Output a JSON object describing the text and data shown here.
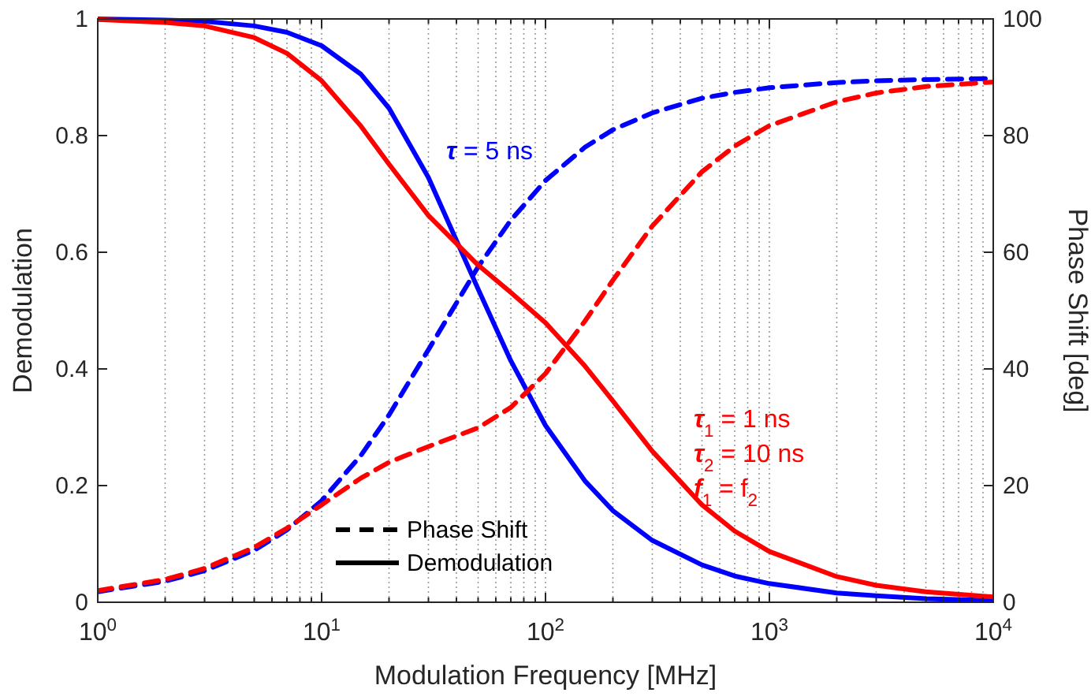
{
  "chart_data": {
    "type": "line",
    "xlabel": "Modulation Frequency [MHz]",
    "ylabel": "Demodulation",
    "y2label": "Phase Shift [deg]",
    "log": "x",
    "grid": "x",
    "marker": "none",
    "xlim": [
      1,
      10000
    ],
    "xticks": [
      {
        "value": 1,
        "label": "10$^{0}$"
      },
      {
        "value": 2,
        "label": null
      },
      {
        "value": 3,
        "label": null
      },
      {
        "value": 4,
        "label": null
      },
      {
        "value": 5,
        "label": null
      },
      {
        "value": 6,
        "label": null
      },
      {
        "value": 7,
        "label": null
      },
      {
        "value": 8,
        "label": null
      },
      {
        "value": 9,
        "label": null
      },
      {
        "value": 10,
        "label": "10$^{1}$"
      },
      {
        "value": 20,
        "label": null
      },
      {
        "value": 30,
        "label": null
      },
      {
        "value": 40,
        "label": null
      },
      {
        "value": 50,
        "label": null
      },
      {
        "value": 60,
        "label": null
      },
      {
        "value": 70,
        "label": null
      },
      {
        "value": 80,
        "label": null
      },
      {
        "value": 90,
        "label": null
      },
      {
        "value": 100,
        "label": "10$^{2}$"
      },
      {
        "value": 200,
        "label": null
      },
      {
        "value": 300,
        "label": null
      },
      {
        "value": 400,
        "label": null
      },
      {
        "value": 500,
        "label": null
      },
      {
        "value": 600,
        "label": null
      },
      {
        "value": 700,
        "label": null
      },
      {
        "value": 800,
        "label": null
      },
      {
        "value": 900,
        "label": null
      },
      {
        "value": 1000,
        "label": "10$^{3}$"
      },
      {
        "value": 2000,
        "label": null
      },
      {
        "value": 3000,
        "label": null
      },
      {
        "value": 4000,
        "label": null
      },
      {
        "value": 5000,
        "label": null
      },
      {
        "value": 6000,
        "label": null
      },
      {
        "value": 7000,
        "label": null
      },
      {
        "value": 8000,
        "label": null
      },
      {
        "value": 9000,
        "label": null
      },
      {
        "value": 10000,
        "label": "10$^{4}$"
      }
    ],
    "ylim": [
      0,
      1
    ],
    "yticks": [
      0,
      0.2,
      0.4,
      0.6,
      0.8,
      1
    ],
    "y2lim": [
      0,
      100
    ],
    "y2ticks": [
      0,
      20,
      40,
      60,
      80,
      100
    ],
    "x": [
      1,
      2,
      3,
      5,
      7,
      10,
      15,
      20,
      30,
      50,
      70,
      100,
      150,
      200,
      300,
      500,
      700,
      1000,
      2000,
      3000,
      5000,
      10000
    ],
    "series": [
      {
        "color": "#0000ff",
        "line_style": "solid",
        "values": [
          1,
          0.998,
          0.996,
          0.988,
          0.977,
          0.954,
          0.905,
          0.847,
          0.728,
          0.537,
          0.414,
          0.303,
          0.208,
          0.157,
          0.106,
          0.064,
          0.045,
          0.032,
          0.016,
          0.011,
          0.006,
          0.003
        ]
      },
      {
        "color": "#0000ff",
        "line_style": "dashed",
        "axis": "y2",
        "values": [
          1.8,
          3.6,
          5.4,
          8.9,
          12.4,
          17.4,
          25.2,
          32.1,
          43.3,
          57.5,
          65.5,
          72.3,
          78,
          81,
          83.9,
          86.4,
          87.4,
          88.2,
          89.1,
          89.4,
          89.6,
          89.8
        ]
      },
      {
        "color": "#ff0000",
        "line_style": "solid",
        "values": [
          0.999,
          0.994,
          0.988,
          0.968,
          0.941,
          0.894,
          0.816,
          0.751,
          0.663,
          0.578,
          0.531,
          0.479,
          0.405,
          0.345,
          0.259,
          0.167,
          0.122,
          0.087,
          0.044,
          0.029,
          0.018,
          0.009
        ]
      },
      {
        "color": "#ff0000",
        "line_style": "dashed",
        "axis": "y2",
        "values": [
          2,
          3.9,
          5.8,
          9.4,
          12.7,
          16.7,
          21.3,
          24,
          26.7,
          29.9,
          33.4,
          39.2,
          48.2,
          55.2,
          64.5,
          73.8,
          78.2,
          81.7,
          85.8,
          87.3,
          88.4,
          89.2
        ]
      }
    ],
    "annotations": [
      "τ = 5 ns",
      "τ$_{1}$ = 1 ns",
      "τ$_{2}$ = 10 ns",
      "f$_{1}$ = f$_{2}$",
      "Phase Shift",
      "Demodulation"
    ]
  }
}
